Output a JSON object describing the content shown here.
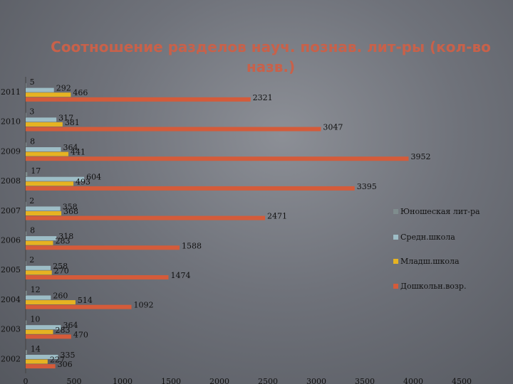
{
  "chart_data": {
    "type": "bar",
    "orientation": "horizontal",
    "title": "Соотношение разделов науч. познав. лит-ры (кол-во назв.)",
    "categories": [
      "2011",
      "2010",
      "2009",
      "2008",
      "2007",
      "2006",
      "2005",
      "2004",
      "2003",
      "2002"
    ],
    "series": [
      {
        "name": "Юношеская лит-ра",
        "color": "#7f8c8d",
        "values": [
          5,
          3,
          8,
          17,
          2,
          8,
          2,
          12,
          10,
          14
        ]
      },
      {
        "name": "Средн.школа",
        "color": "#9dbdc6",
        "values": [
          292,
          317,
          364,
          604,
          358,
          318,
          258,
          260,
          364,
          335
        ]
      },
      {
        "name": "Младш.школа",
        "color": "#e6b322",
        "values": [
          466,
          381,
          441,
          493,
          368,
          283,
          270,
          514,
          283,
          227
        ]
      },
      {
        "name": "Дошкольн.возр.",
        "color": "#d45b3a",
        "values": [
          2321,
          3047,
          3952,
          3395,
          2471,
          1588,
          1474,
          1092,
          470,
          306
        ]
      }
    ],
    "xlim": [
      0,
      4500
    ],
    "xticks": [
      0,
      500,
      1000,
      1500,
      2000,
      2500,
      3000,
      3500,
      4000,
      4500
    ],
    "legend": "right",
    "grid": false
  }
}
